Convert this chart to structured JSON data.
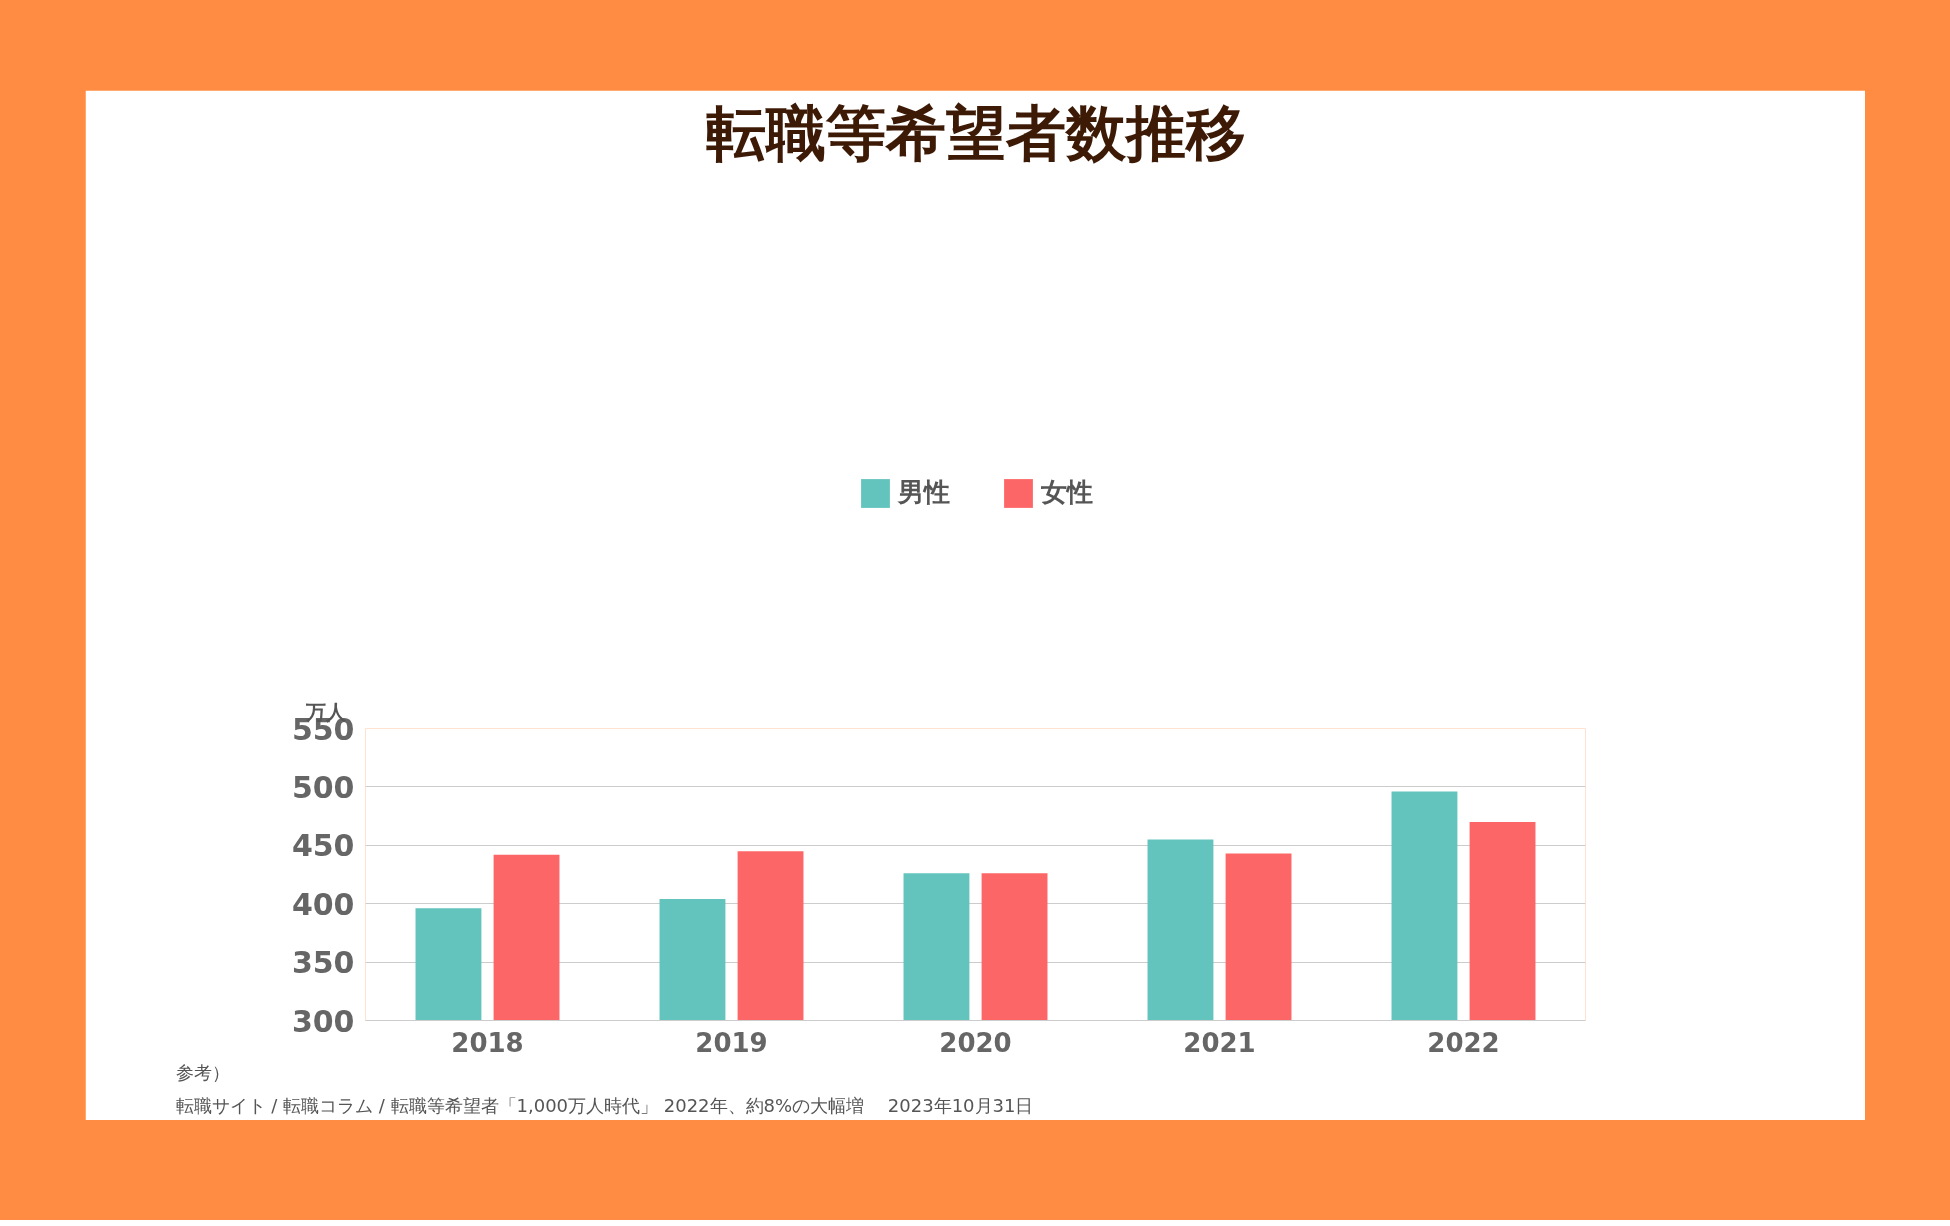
{
  "chart_data": {
    "type": "bar",
    "title": "転職等希望者数推移",
    "ylabel": "万人",
    "categories": [
      "2018",
      "2019",
      "2020",
      "2021",
      "2022"
    ],
    "series": [
      {
        "name": "男性",
        "color": "#63c3bd",
        "values": [
          396,
          404,
          426,
          455,
          496
        ]
      },
      {
        "name": "女性",
        "color": "#fd6666",
        "values": [
          442,
          445,
          426,
          443,
          470
        ]
      }
    ],
    "ylim": [
      300,
      550
    ],
    "yticks": [
      300,
      350,
      400,
      450,
      500,
      550
    ],
    "grid": "y",
    "legend": "top",
    "annotations": [
      "参考）",
      "転職サイト / 転職コラム / 転職等希望者「1,000万人時代」 2022年、約8%の大幅増　 2023年10月31日"
    ]
  }
}
